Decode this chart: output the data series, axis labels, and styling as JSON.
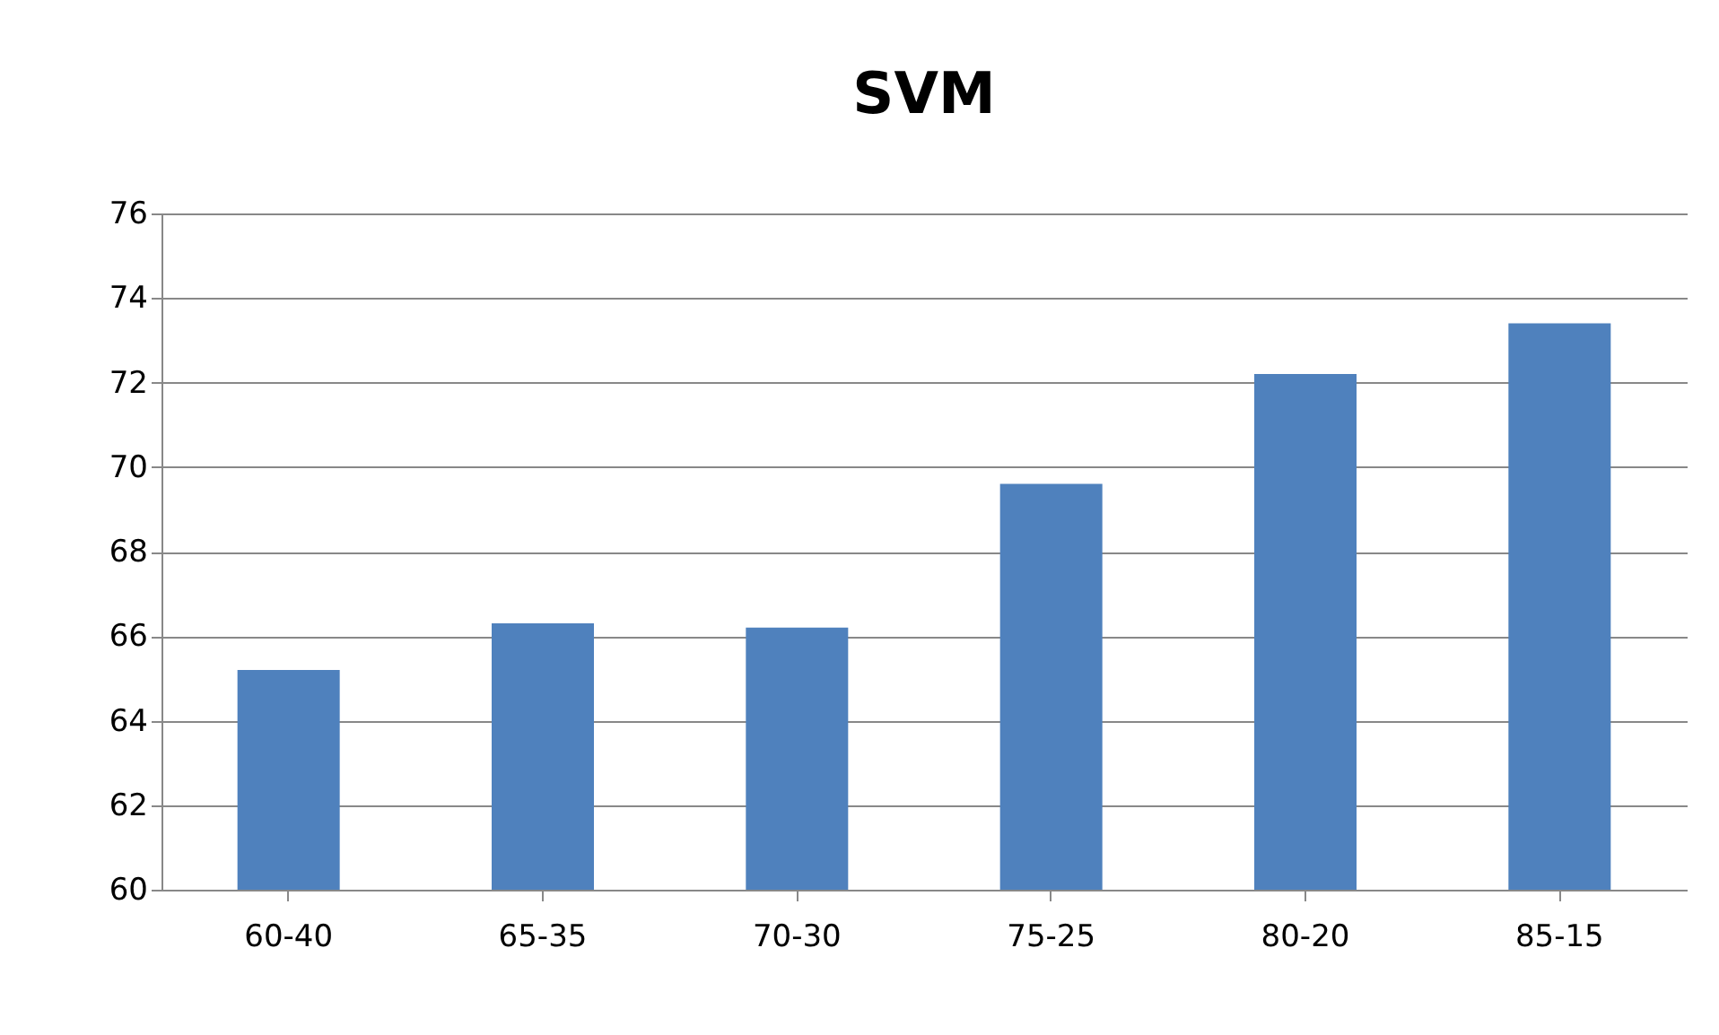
{
  "chart_data": {
    "type": "bar",
    "title": "SVM",
    "categories": [
      "60-40",
      "65-35",
      "70-30",
      "75-25",
      "80-20",
      "85-15"
    ],
    "values": [
      65.2,
      66.3,
      66.2,
      69.6,
      72.2,
      73.4
    ],
    "color": "#4f81bd",
    "ylim": [
      60,
      76
    ],
    "yticks": [
      60,
      62,
      64,
      66,
      68,
      70,
      72,
      74,
      76
    ],
    "grid": "y"
  }
}
